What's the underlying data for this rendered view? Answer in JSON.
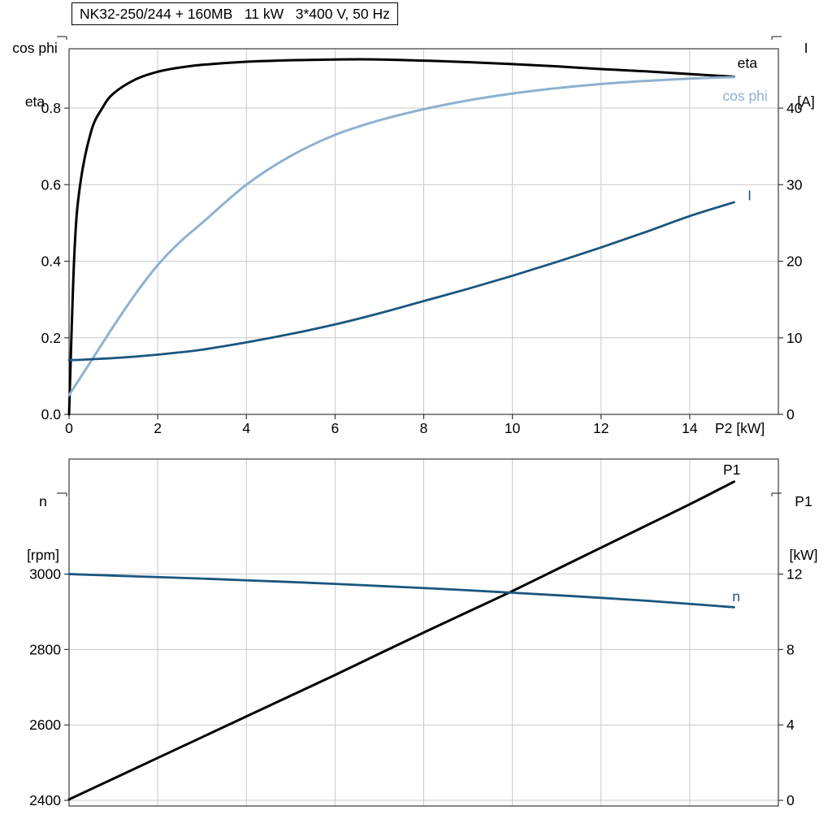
{
  "header": {
    "title": "NK32-250/244 + 160MB   11 kW   3*400 V, 50 Hz"
  },
  "colors": {
    "black": "#000000",
    "light_blue": "#8fb1d0",
    "dark_blue": "#1a567f",
    "grid": "#c9c9c9",
    "axis": "#3a3a3a"
  },
  "chart_data": [
    {
      "type": "line",
      "id": "motor-eta-cosphi-current",
      "x_axis_label": "P2 [kW]",
      "left_axis_title": [
        "cos phi",
        "eta"
      ],
      "right_axis_title": [
        "I",
        "[A]"
      ],
      "xlim": [
        0,
        16
      ],
      "x_ticks": [
        0,
        2,
        4,
        6,
        8,
        10,
        12,
        14
      ],
      "x_tick_labels": [
        "0",
        "2",
        "4",
        "6",
        "8",
        "10",
        "12",
        "14"
      ],
      "ylim_left": [
        0,
        0.955
      ],
      "y_ticks_left": [
        0,
        0.2,
        0.4,
        0.6,
        0.8
      ],
      "y_tick_labels_left": [
        "0.0",
        "0.2",
        "0.4",
        "0.6",
        "0.8"
      ],
      "ylim_right": [
        0,
        47.75
      ],
      "y_ticks_right": [
        0,
        10,
        20,
        30,
        40
      ],
      "y_tick_labels_right": [
        "0",
        "10",
        "20",
        "30",
        "40"
      ],
      "grid": true,
      "x": [
        0,
        0.12,
        0.25,
        0.5,
        0.75,
        1,
        1.5,
        2,
        2.5,
        3,
        4,
        5,
        6,
        7,
        8,
        9,
        10,
        11,
        12,
        13,
        14,
        15
      ],
      "series": [
        {
          "name": "eta",
          "axis": "left",
          "color": "#000000",
          "width": 3,
          "values": [
            0,
            0.42,
            0.6,
            0.74,
            0.8,
            0.838,
            0.875,
            0.895,
            0.906,
            0.913,
            0.921,
            0.925,
            0.927,
            0.927,
            0.924,
            0.92,
            0.915,
            0.909,
            0.902,
            0.896,
            0.889,
            0.882
          ]
        },
        {
          "name": "cos phi",
          "axis": "left",
          "color": "#8fb1d0",
          "width": 3,
          "values": [
            0.05,
            0.072,
            0.095,
            0.14,
            0.185,
            0.23,
            0.315,
            0.39,
            0.45,
            0.5,
            0.6,
            0.675,
            0.73,
            0.768,
            0.797,
            0.82,
            0.838,
            0.852,
            0.863,
            0.871,
            0.877,
            0.881
          ]
        },
        {
          "name": "I",
          "axis": "right",
          "color": "#1a567f",
          "width": 2.8,
          "values": [
            7.1,
            7.1,
            7.12,
            7.2,
            7.27,
            7.35,
            7.55,
            7.8,
            8.1,
            8.45,
            9.4,
            10.5,
            11.75,
            13.2,
            14.8,
            16.4,
            18.1,
            19.9,
            21.8,
            23.8,
            25.9,
            27.7
          ]
        }
      ],
      "annotations": [
        {
          "text": "eta",
          "x": 15.3,
          "value": 0.918,
          "axis": "left",
          "color": "#000000"
        },
        {
          "text": "cos phi",
          "x": 15.25,
          "value": 0.832,
          "axis": "left",
          "color": "#8fb1d0"
        },
        {
          "text": "I",
          "x": 15.35,
          "value": 28.6,
          "axis": "right",
          "color": "#1a567f"
        }
      ]
    },
    {
      "type": "line",
      "id": "speed-power",
      "x_axis_label": "",
      "left_axis_title": [
        "n",
        "[rpm]"
      ],
      "right_axis_title": [
        "P1",
        "[kW]"
      ],
      "xlim": [
        0,
        16
      ],
      "x_ticks": [
        0,
        2,
        4,
        6,
        8,
        10,
        12,
        14
      ],
      "x_tick_labels": [],
      "ylim_left": [
        2385,
        3305
      ],
      "y_ticks_left": [
        2400,
        2600,
        2800,
        3000
      ],
      "y_tick_labels_left": [
        "2400",
        "2600",
        "2800",
        "3000"
      ],
      "ylim_right": [
        -0.3,
        18.1
      ],
      "y_ticks_right": [
        0,
        4,
        8,
        12
      ],
      "y_tick_labels_right": [
        "0",
        "4",
        "8",
        "12"
      ],
      "grid": true,
      "x": [
        0,
        1,
        2,
        3,
        4,
        5,
        6,
        7,
        8,
        9,
        10,
        11,
        12,
        13,
        14,
        15
      ],
      "series": [
        {
          "name": "P1",
          "axis": "right",
          "color": "#000000",
          "width": 3,
          "values": [
            0.05,
            1.15,
            2.25,
            3.35,
            4.45,
            5.55,
            6.65,
            7.78,
            8.9,
            10.0,
            11.1,
            12.25,
            13.4,
            14.55,
            15.7,
            16.9
          ]
        },
        {
          "name": "n",
          "axis": "left",
          "color": "#1a567f",
          "width": 2.8,
          "values": [
            3000,
            2996,
            2992,
            2988,
            2983.5,
            2979,
            2974,
            2968.5,
            2963,
            2957,
            2950.5,
            2944,
            2937,
            2929.5,
            2921,
            2912
          ]
        }
      ],
      "annotations": [
        {
          "text": "P1",
          "x": 14.95,
          "value": 17.55,
          "axis": "right",
          "color": "#000000"
        },
        {
          "text": "n",
          "x": 15.05,
          "value": 2941,
          "axis": "left",
          "color": "#1a567f"
        }
      ]
    }
  ]
}
